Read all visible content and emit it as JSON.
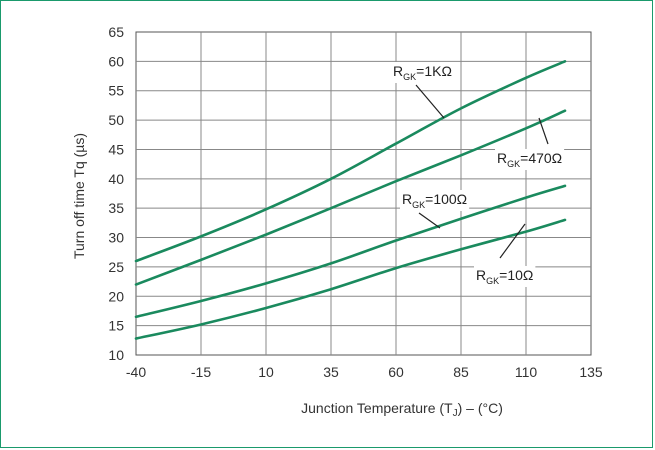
{
  "chart_data": {
    "type": "line",
    "xlabel": "Junction Temperature (T",
    "xlabel_sub": "J",
    "xlabel_suffix": ") – (°C)",
    "ylabel": "Turn off time Tq (µs)",
    "xlim": [
      -40,
      135
    ],
    "ylim": [
      10,
      65
    ],
    "xticks": [
      -40,
      -15,
      10,
      35,
      60,
      85,
      110,
      135
    ],
    "yticks": [
      10,
      15,
      20,
      25,
      30,
      35,
      40,
      45,
      50,
      55,
      60,
      65
    ],
    "grid": true,
    "line_color": "#1a8a5e",
    "series": [
      {
        "name": "R_GK=1KΩ",
        "label_main": "R",
        "label_sub": "GK",
        "label_tail": "=1KΩ",
        "x": [
          -40,
          -15,
          10,
          35,
          60,
          85,
          110,
          125
        ],
        "y": [
          26,
          30.2,
          34.8,
          40,
          46,
          52,
          57.2,
          60
        ]
      },
      {
        "name": "R_GK=470Ω",
        "label_main": "R",
        "label_sub": "GK",
        "label_tail": "=470Ω",
        "x": [
          -40,
          -15,
          10,
          35,
          60,
          85,
          110,
          125
        ],
        "y": [
          22,
          26.2,
          30.5,
          35,
          39.6,
          44,
          48.6,
          51.6
        ]
      },
      {
        "name": "R_GK=100Ω",
        "label_main": "R",
        "label_sub": "GK",
        "label_tail": "=100Ω",
        "x": [
          -40,
          -15,
          10,
          35,
          60,
          85,
          110,
          125
        ],
        "y": [
          16.5,
          19.2,
          22.2,
          25.6,
          29.5,
          33.2,
          36.8,
          38.8
        ]
      },
      {
        "name": "R_GK=10Ω",
        "label_main": "R",
        "label_sub": "GK",
        "label_tail": "=10Ω",
        "x": [
          -40,
          -15,
          10,
          35,
          60,
          85,
          110,
          125
        ],
        "y": [
          12.8,
          15.2,
          18,
          21.2,
          24.8,
          28,
          31,
          33
        ]
      }
    ]
  }
}
